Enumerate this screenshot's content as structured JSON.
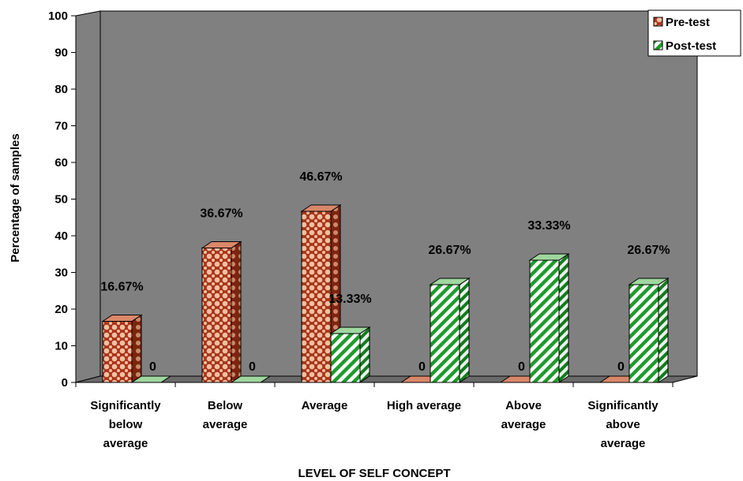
{
  "chart_data": {
    "type": "bar",
    "title": "",
    "xlabel": "LEVEL OF SELF CONCEPT",
    "ylabel": "Percentage of samples",
    "ylim": [
      0,
      100
    ],
    "yticks": [
      "0",
      "10",
      "20",
      "30",
      "40",
      "50",
      "60",
      "70",
      "80",
      "90",
      "100"
    ],
    "grid": false,
    "legend_position": "top-right",
    "categories": [
      [
        "Significantly",
        "below",
        "average"
      ],
      [
        "Below",
        "average"
      ],
      [
        "Average"
      ],
      [
        "High average"
      ],
      [
        "Above",
        "average"
      ],
      [
        "Significantly",
        "above",
        "average"
      ]
    ],
    "series": [
      {
        "name": "Pre-test",
        "values": [
          16.67,
          36.67,
          46.67,
          0,
          0,
          0
        ],
        "data_labels": [
          "16.67%",
          "36.67%",
          "46.67%",
          "0",
          "0",
          "0"
        ],
        "color": "#b5421e"
      },
      {
        "name": "Post-test",
        "values": [
          0,
          0,
          13.33,
          26.67,
          33.33,
          26.67
        ],
        "data_labels": [
          "0",
          "0",
          "13.33%",
          "26.67%",
          "33.33%",
          "26.67%"
        ],
        "color": "#1f9a2a"
      }
    ]
  }
}
